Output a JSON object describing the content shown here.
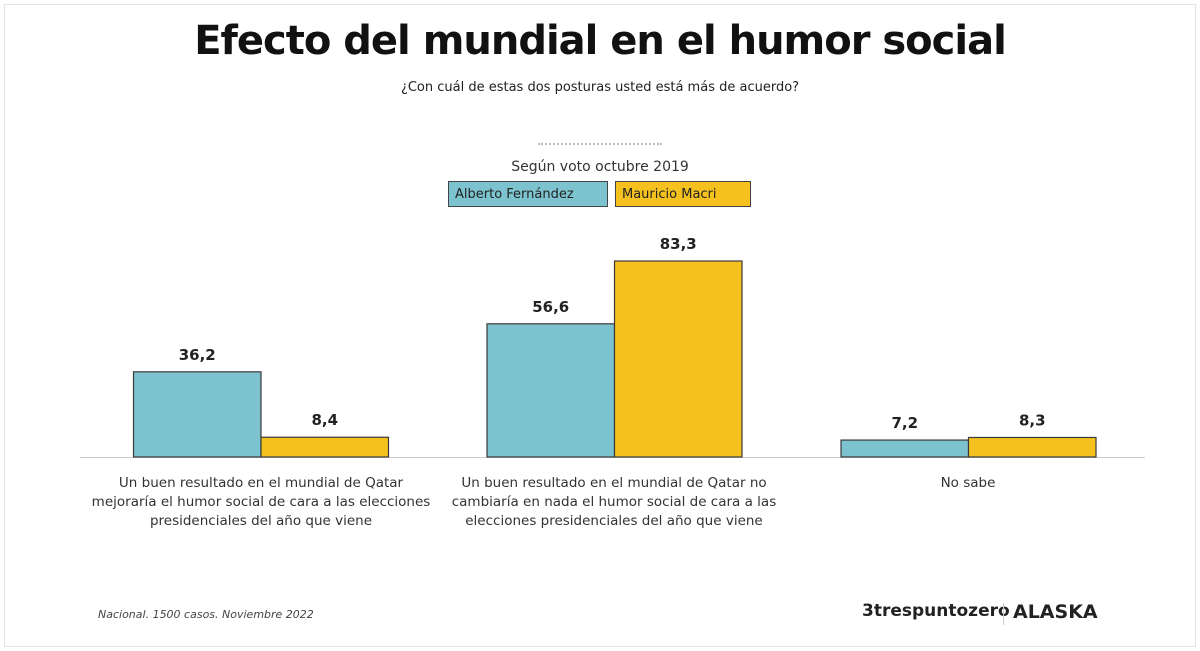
{
  "title": "Efecto del mundial en el humor social",
  "subtitle": "¿Con cuál de estas dos posturas usted está más de acuerdo?",
  "footer": {
    "note": "Nacional. 1500 casos. Noviembre 2022",
    "logo1": "trespuntozero",
    "logo2": "ALASKA"
  },
  "colors": {
    "alberto": "#7cc3cf",
    "macri": "#f4c11f",
    "border": "#3a3a3a"
  },
  "chart_data": {
    "type": "bar",
    "legend_title": "Según voto octubre 2019",
    "legend_placement": "top-center",
    "categories": [
      "Un buen resultado en el mundial de Qatar mejoraría el humor social de cara a las elecciones presidenciales del año que viene",
      "Un buen resultado en el mundial de Qatar no cambiaría en nada el humor social de cara a las elecciones presidenciales del año que viene",
      "No sabe"
    ],
    "series": [
      {
        "name": "Alberto Fernández",
        "values": [
          36.2,
          56.6,
          7.2
        ],
        "labels": [
          "36,2",
          "56,6",
          "7,2"
        ]
      },
      {
        "name": "Mauricio Macri",
        "values": [
          8.4,
          83.3,
          8.3
        ],
        "labels": [
          "8,4",
          "83,3",
          "8,3"
        ]
      }
    ],
    "ylim": [
      0,
      100
    ],
    "grid": false
  }
}
